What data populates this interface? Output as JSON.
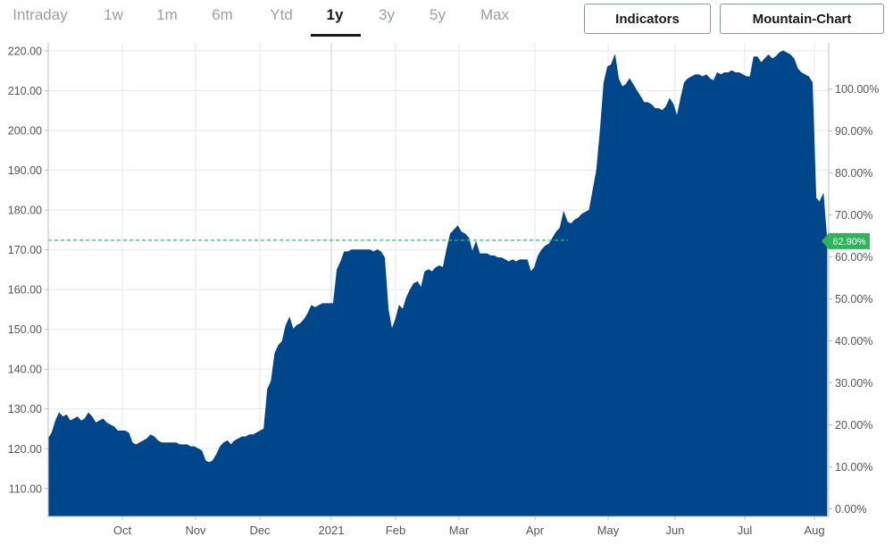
{
  "range_tabs": [
    {
      "label": "Intraday",
      "active": false
    },
    {
      "label": "1w",
      "active": false
    },
    {
      "label": "1m",
      "active": false
    },
    {
      "label": "6m",
      "active": false
    },
    {
      "label": "Ytd",
      "active": false
    },
    {
      "label": "1y",
      "active": true
    },
    {
      "label": "3y",
      "active": false
    },
    {
      "label": "5y",
      "active": false
    },
    {
      "label": "Max",
      "active": false
    }
  ],
  "buttons": {
    "indicators": "Indicators",
    "mountain_chart": "Mountain-Chart"
  },
  "colors": {
    "area": "#00468b",
    "grid": "#e6e8ea",
    "reference_line": "#3dba6a",
    "badge": "#2fb45a"
  },
  "chart_data": {
    "type": "area",
    "left_axis": {
      "ticks": [
        "220.00",
        "210.00",
        "200.00",
        "190.00",
        "180.00",
        "170.00",
        "160.00",
        "150.00",
        "140.00",
        "130.00",
        "120.00",
        "110.00"
      ],
      "range": [
        103,
        222
      ]
    },
    "right_axis": {
      "ticks": [
        "100.00%",
        "90.00%",
        "80.00%",
        "70.00%",
        "60.00%",
        "50.00%",
        "40.00%",
        "30.00%",
        "20.00%",
        "10.00%",
        "0.00%"
      ],
      "range_percent": [
        -1.8,
        111.0
      ]
    },
    "x_labels": [
      "Oct",
      "Nov",
      "Dec",
      "2021",
      "Feb",
      "Mar",
      "Apr",
      "May",
      "Jun",
      "Jul",
      "Aug"
    ],
    "reference_value": 172.4,
    "current_change_label": "62.90%",
    "grid": true,
    "series": [
      {
        "values": [
          122.5,
          124,
          127,
          129,
          128,
          128.5,
          127,
          127.5,
          128,
          127,
          127.5,
          129,
          128,
          126.5,
          127,
          127.5,
          126.5,
          126,
          125.5,
          124.5,
          124.5,
          124.5,
          124,
          121.5,
          121,
          121.5,
          122,
          122.5,
          123.5,
          123,
          122,
          121.5,
          121.5,
          121.5,
          121.5,
          121.5,
          121,
          121,
          121,
          120.5,
          120.5,
          120,
          119.5,
          117,
          116.5,
          117,
          118.5,
          120.5,
          121.5,
          122,
          121,
          122,
          122.5,
          123,
          123,
          123.5,
          123.5,
          124,
          124.5,
          125,
          135,
          137,
          144,
          146,
          147,
          151,
          153,
          150,
          151,
          151.5,
          152.5,
          154,
          156,
          155.5,
          156,
          156.5,
          156.5,
          156.5,
          156.5,
          165,
          167,
          169.5,
          169.5,
          170,
          170,
          170,
          170,
          170,
          170,
          169.5,
          170,
          169.5,
          168,
          155,
          150,
          152.5,
          156,
          155,
          158,
          160,
          161.5,
          162,
          160.5,
          164.5,
          165,
          164.5,
          165.5,
          166,
          165.5,
          170,
          174,
          175,
          176,
          174.5,
          174,
          173,
          169.5,
          172,
          169,
          169,
          169,
          168.5,
          168.5,
          168,
          168,
          167.5,
          167,
          167.5,
          167,
          167.5,
          167.5,
          167.5,
          164.5,
          165.5,
          168.5,
          170,
          171,
          171.5,
          173,
          174.5,
          175.5,
          179.5,
          177,
          176.5,
          177.5,
          178,
          179,
          179.5,
          180,
          185,
          190,
          200,
          212,
          216,
          216.5,
          219,
          213,
          211,
          211.5,
          213,
          211.5,
          210,
          208.5,
          207,
          207,
          206.5,
          205.5,
          205.5,
          205,
          206,
          208,
          206.5,
          203.5,
          208,
          212,
          213,
          213.5,
          214,
          214,
          213.5,
          214,
          213,
          212.5,
          214.5,
          214,
          214.5,
          214.5,
          215,
          214.5,
          214.5,
          214,
          213.5,
          213.5,
          218.5,
          218.5,
          217,
          218,
          219,
          218,
          218.5,
          219.5,
          220,
          219.5,
          219,
          218,
          215.5,
          214.5,
          214,
          213.5,
          212,
          183,
          182,
          184,
          172.4
        ]
      }
    ]
  }
}
